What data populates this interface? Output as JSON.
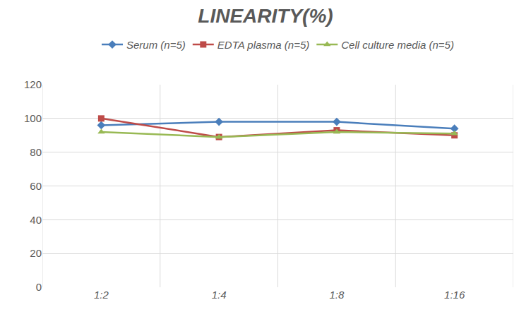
{
  "chart_data": {
    "type": "line",
    "title": "LINEARITY(%)",
    "categories": [
      "1:2",
      "1:4",
      "1:8",
      "1:16"
    ],
    "series": [
      {
        "name": "Serum (n=5)",
        "color": "#4a7ebb",
        "marker": "diamond",
        "values": [
          96,
          98,
          98,
          94
        ]
      },
      {
        "name": "EDTA plasma (n=5)",
        "color": "#be4b48",
        "marker": "square",
        "values": [
          100,
          89,
          93,
          90
        ]
      },
      {
        "name": "Cell culture media (n=5)",
        "color": "#98b954",
        "marker": "triangle-up",
        "values": [
          92,
          89,
          92,
          91
        ]
      }
    ],
    "ylim": [
      0,
      120
    ],
    "yticks": [
      0,
      20,
      40,
      60,
      80,
      100,
      120
    ],
    "grid": true,
    "legend": "top"
  }
}
